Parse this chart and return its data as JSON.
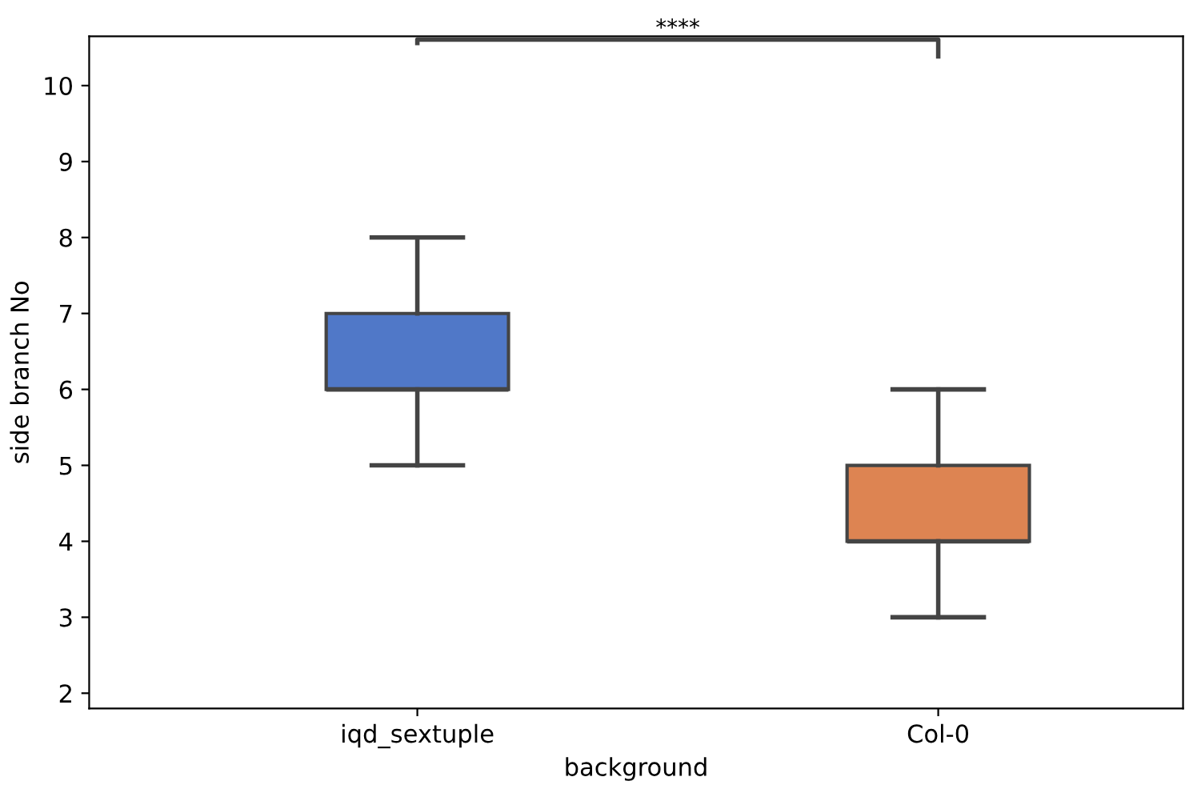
{
  "chart_data": {
    "type": "box",
    "xlabel": "background",
    "ylabel": "side branch No",
    "categories": [
      "iqd_sextuple",
      "Col-0"
    ],
    "colors": [
      "#5078c8",
      "#dd8452"
    ],
    "boxes": [
      {
        "low": 5,
        "q1": 6,
        "median": 6,
        "q3": 7,
        "high": 8
      },
      {
        "low": 3,
        "q1": 4,
        "median": 4,
        "q3": 5,
        "high": 6
      }
    ],
    "ylim": [
      1.8,
      10.65
    ],
    "yticks": [
      2,
      3,
      4,
      5,
      6,
      7,
      8,
      9,
      10
    ],
    "annotations": [
      "****"
    ],
    "grid": false,
    "legend": false
  }
}
